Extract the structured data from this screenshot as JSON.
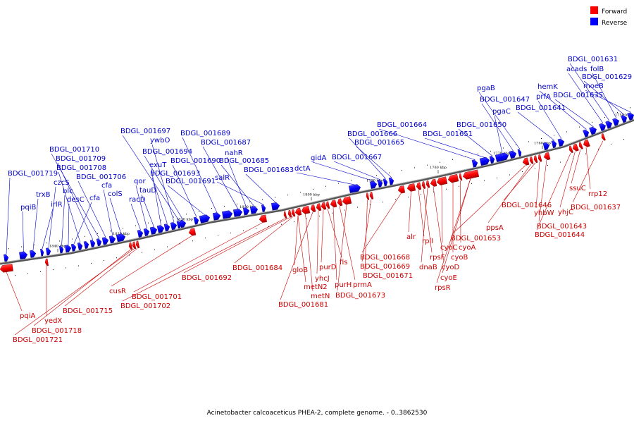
{
  "caption": "Acinetobacter calcoaceticus PHEA-2, complete genome. - 0..3862530",
  "legend": {
    "forward_label": "Forward",
    "reverse_label": "Reverse",
    "forward_color": "#ff0000",
    "reverse_color": "#0000ff"
  },
  "colors": {
    "forward_label": "#cc0000",
    "reverse_label": "#0000cc"
  },
  "backbone": {
    "color": "#888888"
  },
  "ticks": [
    "1840 kbp",
    "1830 kbp",
    "1820 kbp",
    "1810 kbp",
    "1800 kbp",
    "1790 kbp",
    "1780 kbp",
    "1770 kbp",
    "1760 kbp",
    "1750 kbp"
  ],
  "reverse_labels": [
    "BDGL_001719",
    "pqiB",
    "trxB",
    "irlR",
    "czcS",
    "blc",
    "desC",
    "cfa",
    "BDGL_001708",
    "BDGL_001709",
    "BDGL_001710",
    "BDGL_001706",
    "cfa",
    "colS",
    "racD",
    "qor",
    "tauD",
    "exuT",
    "BDGL_001693",
    "ywbO",
    "BDGL_001697",
    "BDGL_001694",
    "BDGL_001690",
    "BDGL_001691",
    "BDGL_001689",
    "BDGL_001687",
    "nahR",
    "BDGL_001685",
    "salR",
    "BDGL_001683",
    "dctA",
    "gidA",
    "BDGL_001667",
    "BDGL_001666",
    "BDGL_001665",
    "BDGL_001664",
    "BDGL_001651",
    "BDGL_001650",
    "pgaC",
    "BDGL_001647",
    "pgaB",
    "BDGL_001641",
    "prfA",
    "hemK",
    "BDGL_001635",
    "acads",
    "BDGL_001631",
    "folB",
    "BDGL_001629",
    "moeB"
  ],
  "forward_labels": [
    "pqiA",
    "yedX",
    "BDGL_001718",
    "BDGL_001721",
    "BDGL_001715",
    "cusR",
    "BDGL_001701",
    "BDGL_001702",
    "BDGL_001692",
    "BDGL_001684",
    "gloB",
    "metN2",
    "metN",
    "BDGL_001681",
    "yhcJ",
    "purD",
    "fis",
    "purH",
    "prmA",
    "BDGL_001673",
    "BDGL_001671",
    "BDGL_001669",
    "BDGL_001668",
    "alr",
    "rplI",
    "rpsF",
    "dnaB",
    "cyoD",
    "cyoC",
    "cyoB",
    "cyoA",
    "cyoE",
    "rpsR",
    "BDGL_001653",
    "ppsA",
    "BDGL_001646",
    "yhbW",
    "BDGL_001643",
    "BDGL_001644",
    "yhjC",
    "ssuC",
    "rrp12",
    "BDGL_001637"
  ]
}
